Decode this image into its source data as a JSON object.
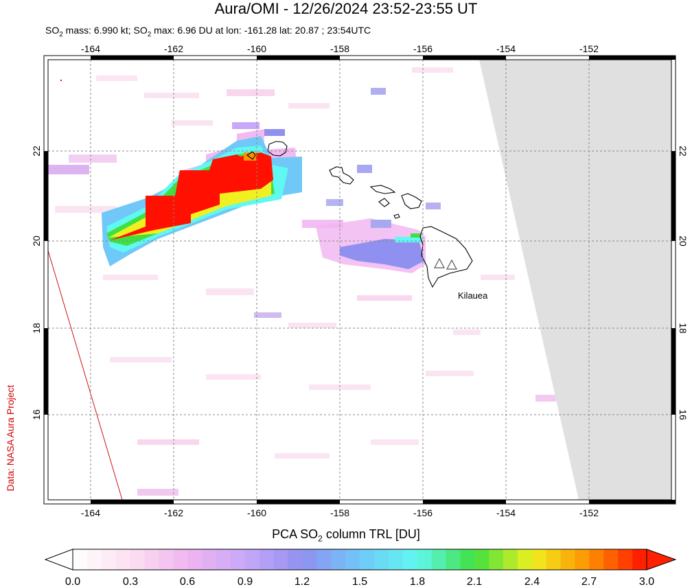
{
  "title": "Aura/OMI - 12/26/2024 23:52-23:55 UT",
  "subtitle": {
    "part1": "SO",
    "sub1": "2",
    "part2": " mass: 6.990 kt; SO",
    "sub2": "2",
    "part3": " max: 6.96 DU at lon: -161.28 lat: 20.87 ; 23:54UTC"
  },
  "credit": "Data: NASA Aura Project",
  "map": {
    "lon_range": [
      -165,
      -150
    ],
    "lat_range": [
      14,
      24
    ],
    "lon_ticks": [
      "-164",
      "-162",
      "-160",
      "-158",
      "-156",
      "-154",
      "-152"
    ],
    "lat_ticks": [
      "16",
      "18",
      "20",
      "22"
    ],
    "grid": true,
    "volcano_label": "Kilauea"
  },
  "colorbar": {
    "title_part1": "PCA SO",
    "title_sub": "2",
    "title_part2": " column TRL [DU]",
    "ticks": [
      "0.0",
      "0.3",
      "0.6",
      "0.9",
      "1.2",
      "1.5",
      "1.8",
      "2.1",
      "2.4",
      "2.7",
      "3.0"
    ],
    "colors": [
      "#ffffff",
      "#fbe0f0",
      "#f0b4f0",
      "#c8a8f8",
      "#9090f0",
      "#70c8f8",
      "#60f8f0",
      "#40e040",
      "#f0f020",
      "#ff9000",
      "#ff1000"
    ]
  }
}
